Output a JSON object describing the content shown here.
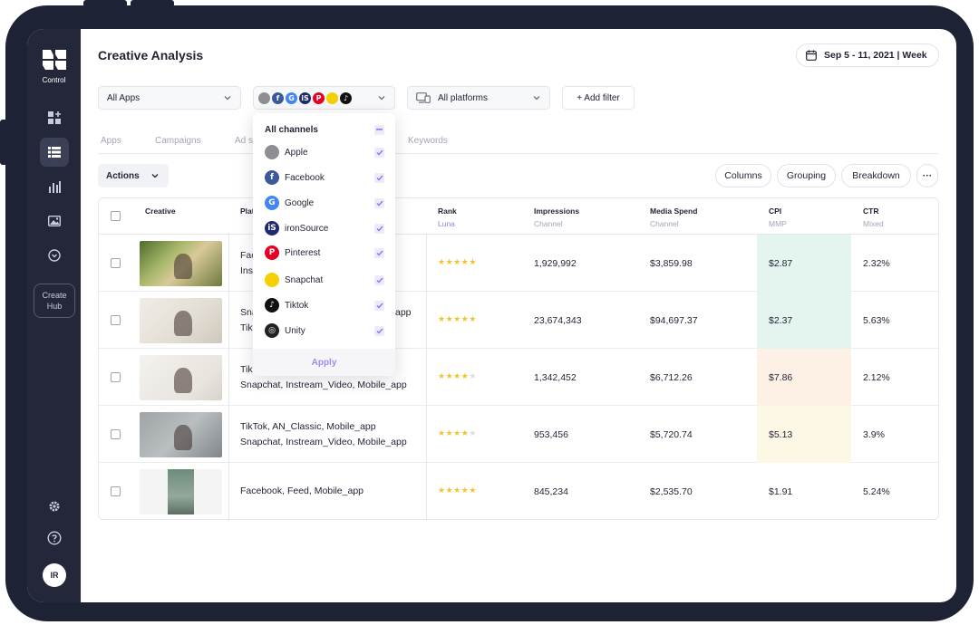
{
  "app": {
    "logo_label": "Control",
    "create_hub_line1": "Create",
    "create_hub_line2": "Hub",
    "avatar_initials": "IR"
  },
  "header": {
    "title": "Creative Analysis",
    "date_range": "Sep 5 - 11, 2021 | Week"
  },
  "filters": {
    "apps": "All Apps",
    "platforms": "All platforms",
    "add_filter": "+ Add filter",
    "channel_icons": [
      {
        "name": "apple-icon",
        "glyph": "",
        "color": "#8e8e93"
      },
      {
        "name": "facebook-icon",
        "glyph": "f",
        "color": "#3b5998"
      },
      {
        "name": "google-icon",
        "glyph": "G",
        "color": "#4285f4"
      },
      {
        "name": "ironsource-icon",
        "glyph": "iS",
        "color": "#1e2a6e"
      },
      {
        "name": "pinterest-icon",
        "glyph": "P",
        "color": "#e60023"
      },
      {
        "name": "snapchat-icon",
        "glyph": "",
        "color": "#f5d000"
      },
      {
        "name": "tiktok-icon",
        "glyph": "♪",
        "color": "#111111"
      }
    ]
  },
  "tabs": [
    "Apps",
    "Campaigns",
    "Ad s",
    "Keywords"
  ],
  "toolbar": {
    "actions": "Actions",
    "columns": "Columns",
    "grouping": "Grouping",
    "breakdown": "Breakdown",
    "more": "···"
  },
  "table": {
    "headers": {
      "creative": "Creative",
      "platform": "Plat",
      "rank": "Rank",
      "rank_sub": "Luna",
      "impressions": "Impressions",
      "impressions_sub": "Channel",
      "spend": "Media Spend",
      "spend_sub": "Channel",
      "cpi": "CPI",
      "cpi_sub": "MMP",
      "ctr": "CTR",
      "ctr_sub": "Mixed"
    },
    "rows": [
      {
        "platform_line1": "Fac",
        "platform_line2": "Insta",
        "stars": 5,
        "impressions": "1,929,992",
        "spend": "$3,859.98",
        "cpi": "$2.87",
        "cpi_color": "#e4f4ee",
        "ctr": "2.32%"
      },
      {
        "platform_line1": "Snap",
        "platform_line2": "Tiktk",
        "platform_tail": "app",
        "stars": 5,
        "impressions": "23,674,343",
        "spend": "$94,697.37",
        "cpi": "$2.37",
        "cpi_color": "#e4f4ee",
        "ctr": "5.63%"
      },
      {
        "platform_line1": "Tik",
        "platform_line2": "Snapchat, Instream_Video, Mobile_app",
        "stars": 4,
        "impressions": "1,342,452",
        "spend": "$6,712.26",
        "cpi": "$7.86",
        "cpi_color": "#fdf1e6",
        "ctr": "2.12%"
      },
      {
        "platform_line1": "TikTok, AN_Classic, Mobile_app",
        "platform_line2": "Snapchat, Instream_Video, Mobile_app",
        "stars": 4,
        "impressions": "953,456",
        "spend": "$5,720.74",
        "cpi": "$5.13",
        "cpi_color": "#fdf8e6",
        "ctr": "3.9%"
      },
      {
        "platform_line1": "Facebook, Feed, Mobile_app",
        "platform_line2": "",
        "stars": 5,
        "impressions": "845,234",
        "spend": "$2,535.70",
        "cpi": "$1.91",
        "cpi_color": "#ffffff",
        "ctr": "5.24%"
      }
    ]
  },
  "channel_dropdown": {
    "all_label": "All channels",
    "items": [
      {
        "label": "Apple",
        "icon": "apple-icon",
        "color": "#8e8e93",
        "glyph": ""
      },
      {
        "label": "Facebook",
        "icon": "facebook-icon",
        "color": "#3b5998",
        "glyph": "f"
      },
      {
        "label": "Google",
        "icon": "google-icon",
        "color": "#4285f4",
        "glyph": "G"
      },
      {
        "label": "ironSource",
        "icon": "ironsource-icon",
        "color": "#1e2a6e",
        "glyph": "iS"
      },
      {
        "label": "Pinterest",
        "icon": "pinterest-icon",
        "color": "#e60023",
        "glyph": "P"
      },
      {
        "label": "Snapchat",
        "icon": "snapchat-icon",
        "color": "#f5d000",
        "glyph": ""
      },
      {
        "label": "Tiktok",
        "icon": "tiktok-icon",
        "color": "#111111",
        "glyph": "♪"
      },
      {
        "label": "Unity",
        "icon": "unity-icon",
        "color": "#222222",
        "glyph": "◎"
      }
    ],
    "apply": "Apply"
  }
}
